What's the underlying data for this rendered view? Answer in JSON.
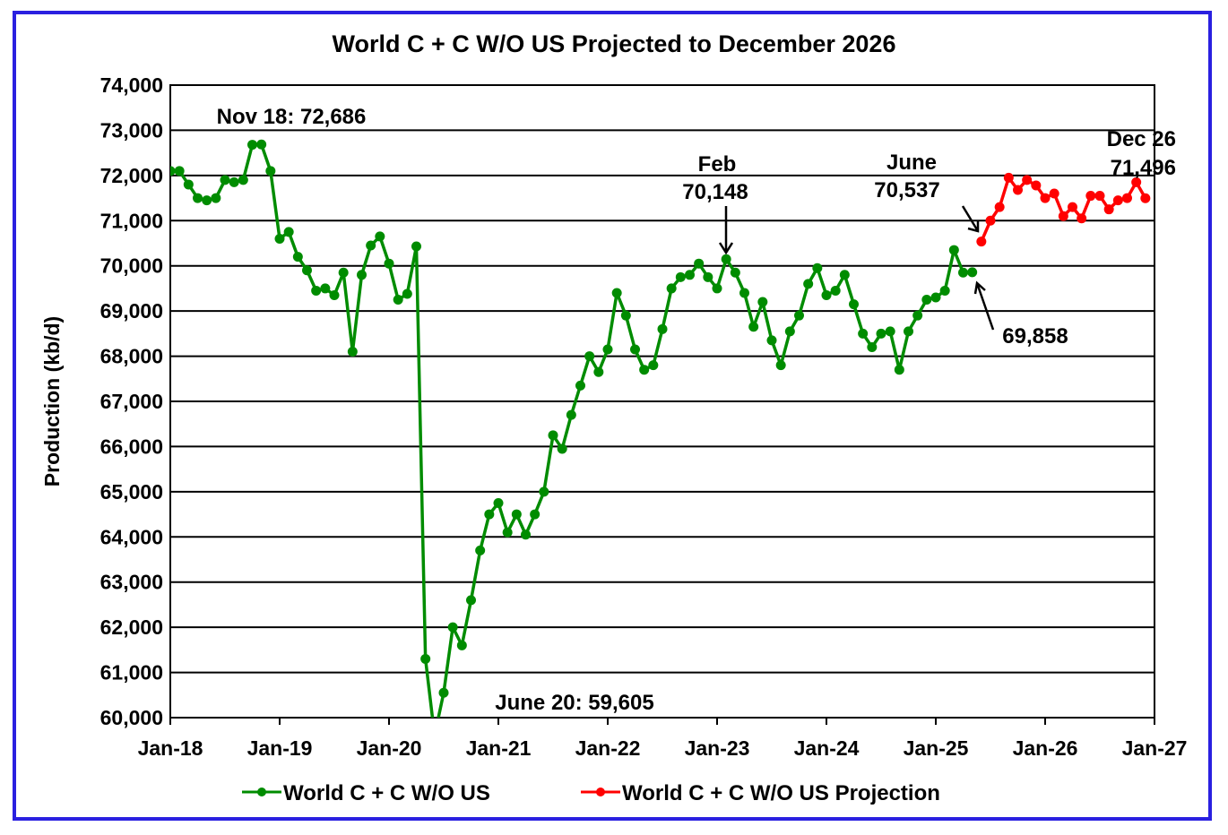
{
  "chart_data": {
    "type": "line",
    "title": "World C + C W/O US Projected to December 2026",
    "xlabel": "",
    "ylabel": "Production (kb/d)",
    "ylim": [
      60000,
      74000
    ],
    "yticks": [
      "60,000",
      "61,000",
      "62,000",
      "63,000",
      "64,000",
      "65,000",
      "66,000",
      "67,000",
      "68,000",
      "69,000",
      "70,000",
      "71,000",
      "72,000",
      "73,000",
      "74,000"
    ],
    "xticks": [
      "Jan-18",
      "Jan-19",
      "Jan-20",
      "Jan-21",
      "Jan-22",
      "Jan-23",
      "Jan-24",
      "Jan-25",
      "Jan-26",
      "Jan-27"
    ],
    "x_start": "2018-01",
    "grid": "horizontal",
    "legend_position": "bottom",
    "series": [
      {
        "name": "World C + C W/O US",
        "color": "#008c00",
        "start_month_index": 0,
        "values": [
          72100,
          72100,
          71800,
          71500,
          71450,
          71500,
          71900,
          71850,
          71900,
          72680,
          72686,
          72100,
          70600,
          70750,
          70200,
          69900,
          69450,
          69500,
          69350,
          69850,
          68100,
          69800,
          70450,
          70650,
          70050,
          69250,
          69380,
          70430,
          61300,
          59605,
          60550,
          62000,
          61600,
          62600,
          63700,
          64500,
          64750,
          64100,
          64500,
          64050,
          64500,
          65000,
          66250,
          65950,
          66700,
          67350,
          68000,
          67650,
          68150,
          69400,
          68900,
          68150,
          67700,
          67800,
          68600,
          69500,
          69750,
          69800,
          70050,
          69750,
          69500,
          70148,
          69850,
          69400,
          68650,
          69200,
          68350,
          67800,
          68550,
          68900,
          69600,
          69950,
          69350,
          69450,
          69800,
          69150,
          68500,
          68200,
          68500,
          68550,
          67700,
          68550,
          68900,
          69250,
          69300,
          69450,
          70350,
          69850,
          69858
        ]
      },
      {
        "name": "World C + C W/O US Projection",
        "color": "#ff0000",
        "start_month_index": 89,
        "values": [
          70537,
          71000,
          71300,
          71950,
          71680,
          71900,
          71780,
          71500,
          71600,
          71100,
          71300,
          71050,
          71550,
          71550,
          71250,
          71450,
          71500,
          71850,
          71496
        ]
      }
    ],
    "annotations": [
      {
        "text": "Nov 18: 72,686"
      },
      {
        "text": "June 20: 59,605"
      },
      {
        "text": "Feb",
        "text2": "70,148"
      },
      {
        "text": "June",
        "text2": "70,537"
      },
      {
        "text": "Dec 26",
        "text2": "71,496"
      },
      {
        "text": "69,858"
      }
    ]
  }
}
